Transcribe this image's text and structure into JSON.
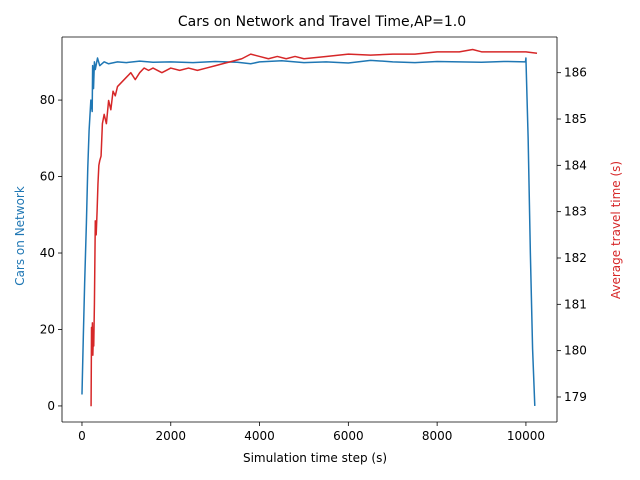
{
  "chart_data": {
    "type": "line",
    "title": "Cars on Network and Travel Time,AP=1.0",
    "xlabel": "Simulation time step (s)",
    "ylabel_left": "Cars on Network",
    "ylabel_right": "Average travel time (s)",
    "xlim": [
      -450,
      10700
    ],
    "ylim_left": [
      -4.2,
      96.5
    ],
    "ylim_right": [
      178.46,
      186.77
    ],
    "x_ticks": [
      0,
      2000,
      4000,
      6000,
      8000,
      10000
    ],
    "x_tick_labels": [
      "0",
      "2000",
      "4000",
      "6000",
      "8000",
      "10000"
    ],
    "y_left_ticks": [
      0,
      20,
      40,
      60,
      80
    ],
    "y_left_tick_labels": [
      "0",
      "20",
      "40",
      "60",
      "80"
    ],
    "y_right_ticks": [
      179,
      180,
      181,
      182,
      183,
      184,
      185,
      186
    ],
    "y_right_tick_labels": [
      "179",
      "180",
      "181",
      "182",
      "183",
      "184",
      "185",
      "186"
    ],
    "grid": false,
    "legend": "none",
    "series": [
      {
        "axis": "left",
        "color": "#1f77b4",
        "x": [
          0,
          30,
          60,
          100,
          130,
          160,
          200,
          230,
          240,
          260,
          280,
          300,
          350,
          400,
          500,
          600,
          800,
          1000,
          1300,
          1600,
          2000,
          2500,
          3000,
          3500,
          3800,
          4000,
          4500,
          5000,
          5500,
          6000,
          6500,
          7000,
          7500,
          8000,
          8500,
          9000,
          9500,
          9990,
          10000,
          10050,
          10100,
          10150,
          10200
        ],
        "y": [
          3,
          18,
          32,
          48,
          62,
          72,
          80,
          77,
          89,
          83,
          90,
          88,
          91,
          89,
          90,
          89.5,
          90,
          89.8,
          90.2,
          89.9,
          90,
          89.8,
          90.1,
          89.9,
          89.5,
          90,
          90.3,
          89.8,
          90,
          89.7,
          90.4,
          90,
          89.8,
          90.1,
          90,
          89.9,
          90.1,
          90,
          91,
          70,
          40,
          15,
          0
        ]
      },
      {
        "axis": "right",
        "color": "#d62728",
        "x": [
          205,
          215,
          225,
          235,
          245,
          255,
          265,
          280,
          300,
          320,
          340,
          360,
          380,
          400,
          430,
          460,
          500,
          550,
          600,
          650,
          700,
          750,
          800,
          900,
          1000,
          1100,
          1200,
          1300,
          1400,
          1500,
          1600,
          1800,
          2000,
          2200,
          2400,
          2600,
          2800,
          3000,
          3200,
          3400,
          3600,
          3800,
          4000,
          4200,
          4400,
          4600,
          4800,
          5000,
          5500,
          6000,
          6500,
          7000,
          7500,
          8000,
          8500,
          8800,
          9000,
          9500,
          10000,
          10250
        ],
        "y": [
          178.8,
          180.5,
          180.0,
          180.6,
          179.9,
          180.3,
          180.1,
          181.0,
          182.8,
          182.5,
          183.0,
          183.6,
          184.0,
          184.1,
          184.2,
          184.9,
          185.1,
          184.9,
          185.4,
          185.2,
          185.6,
          185.5,
          185.7,
          185.8,
          185.9,
          186.0,
          185.85,
          186.0,
          186.1,
          186.05,
          186.1,
          186.0,
          186.1,
          186.05,
          186.1,
          186.05,
          186.1,
          186.15,
          186.2,
          186.25,
          186.3,
          186.4,
          186.35,
          186.3,
          186.35,
          186.3,
          186.35,
          186.3,
          186.35,
          186.4,
          186.38,
          186.4,
          186.4,
          186.45,
          186.45,
          186.5,
          186.45,
          186.45,
          186.45,
          186.42
        ]
      }
    ]
  }
}
